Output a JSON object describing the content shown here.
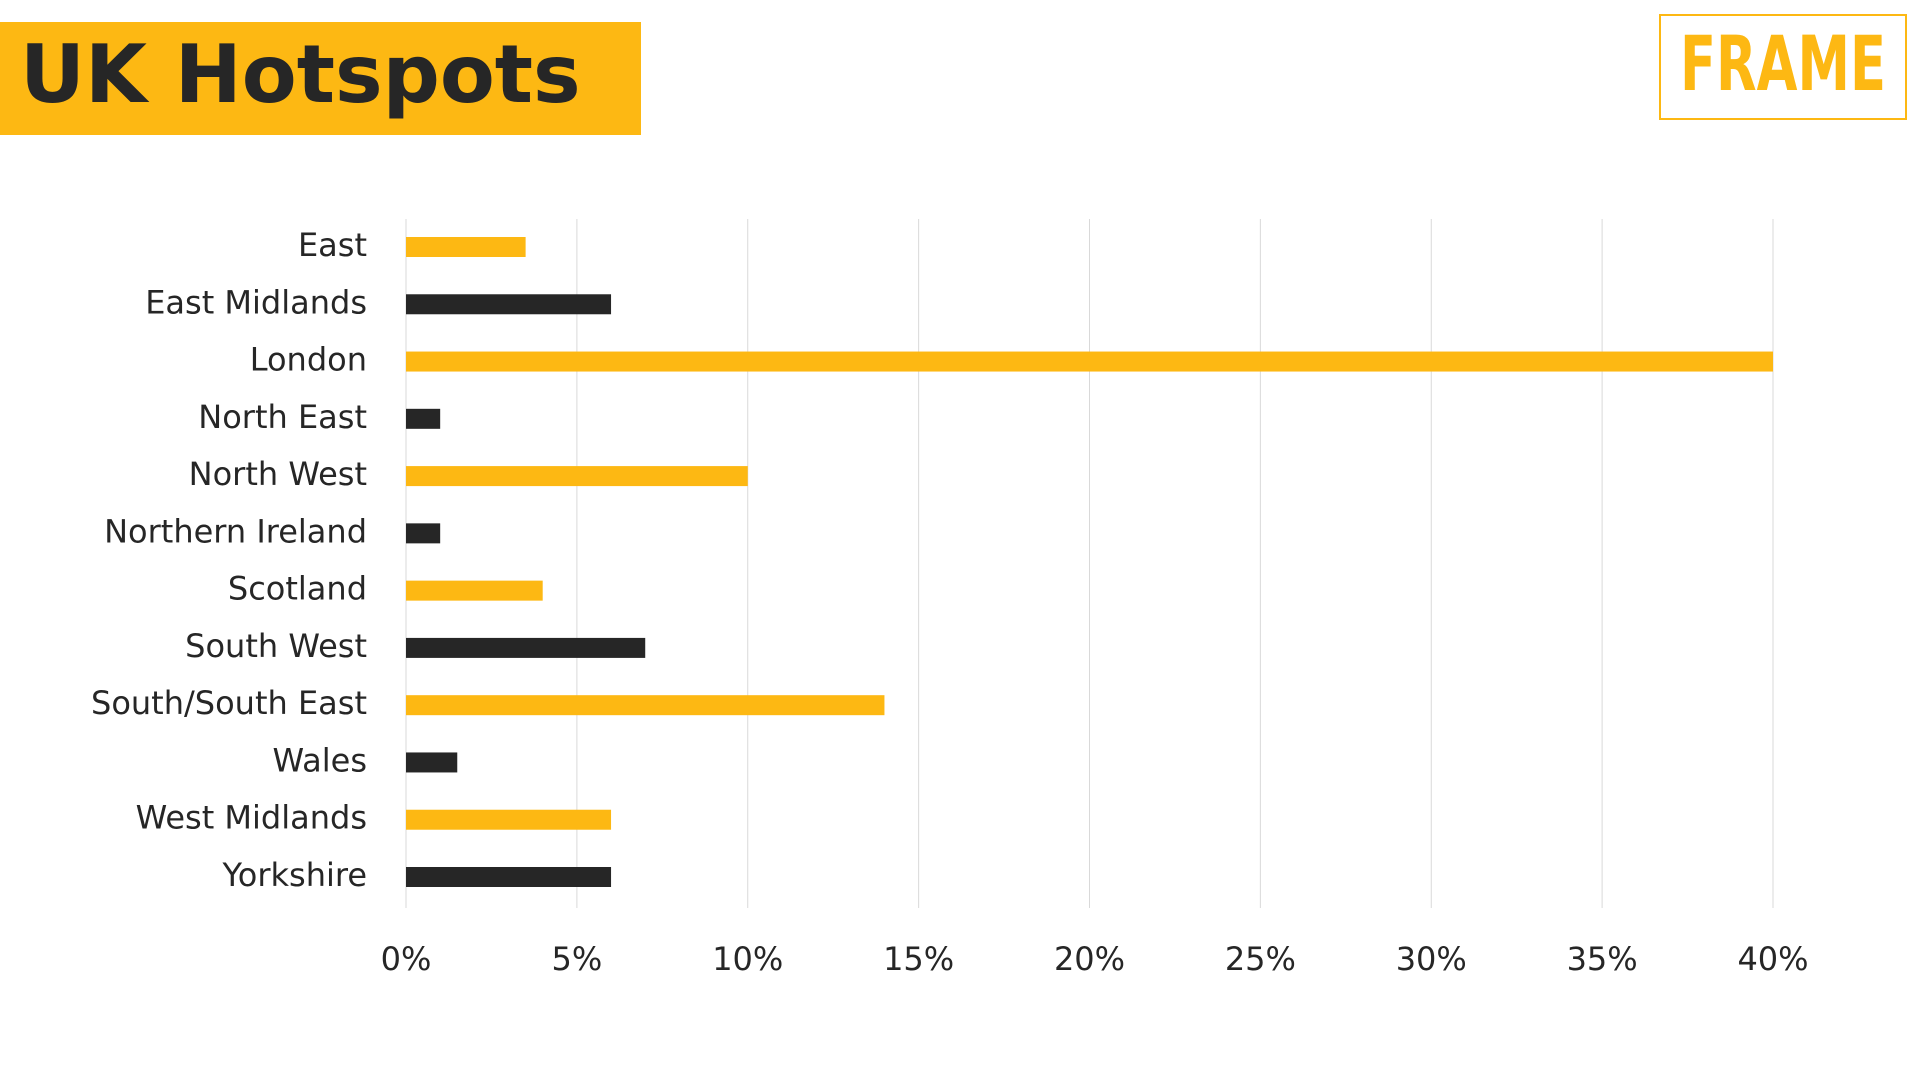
{
  "chart_data": {
    "type": "bar",
    "orientation": "horizontal",
    "title": "UK Hotspots",
    "logo": "FRAME",
    "categories": [
      "East",
      "East Midlands",
      "London",
      "North East",
      "North West",
      "Northern Ireland",
      "Scotland",
      "South West",
      "South/South East",
      "Wales",
      "West Midlands",
      "Yorkshire"
    ],
    "values": [
      3.5,
      6,
      40,
      1,
      10,
      1,
      4,
      7,
      14,
      1.5,
      6,
      6
    ],
    "colors": [
      "#fdb813",
      "#262626",
      "#fdb813",
      "#262626",
      "#fdb813",
      "#262626",
      "#fdb813",
      "#262626",
      "#fdb813",
      "#262626",
      "#fdb813",
      "#262626"
    ],
    "xlim": [
      0,
      40
    ],
    "xticks": [
      {
        "value": 0,
        "label": "0%"
      },
      {
        "value": 5,
        "label": "5%"
      },
      {
        "value": 10,
        "label": "10%"
      },
      {
        "value": 15,
        "label": "15%"
      },
      {
        "value": 20,
        "label": "20%"
      },
      {
        "value": 25,
        "label": "25%"
      },
      {
        "value": 30,
        "label": "30%"
      },
      {
        "value": 35,
        "label": "35%"
      },
      {
        "value": 40,
        "label": "40%"
      }
    ],
    "grid": true
  }
}
